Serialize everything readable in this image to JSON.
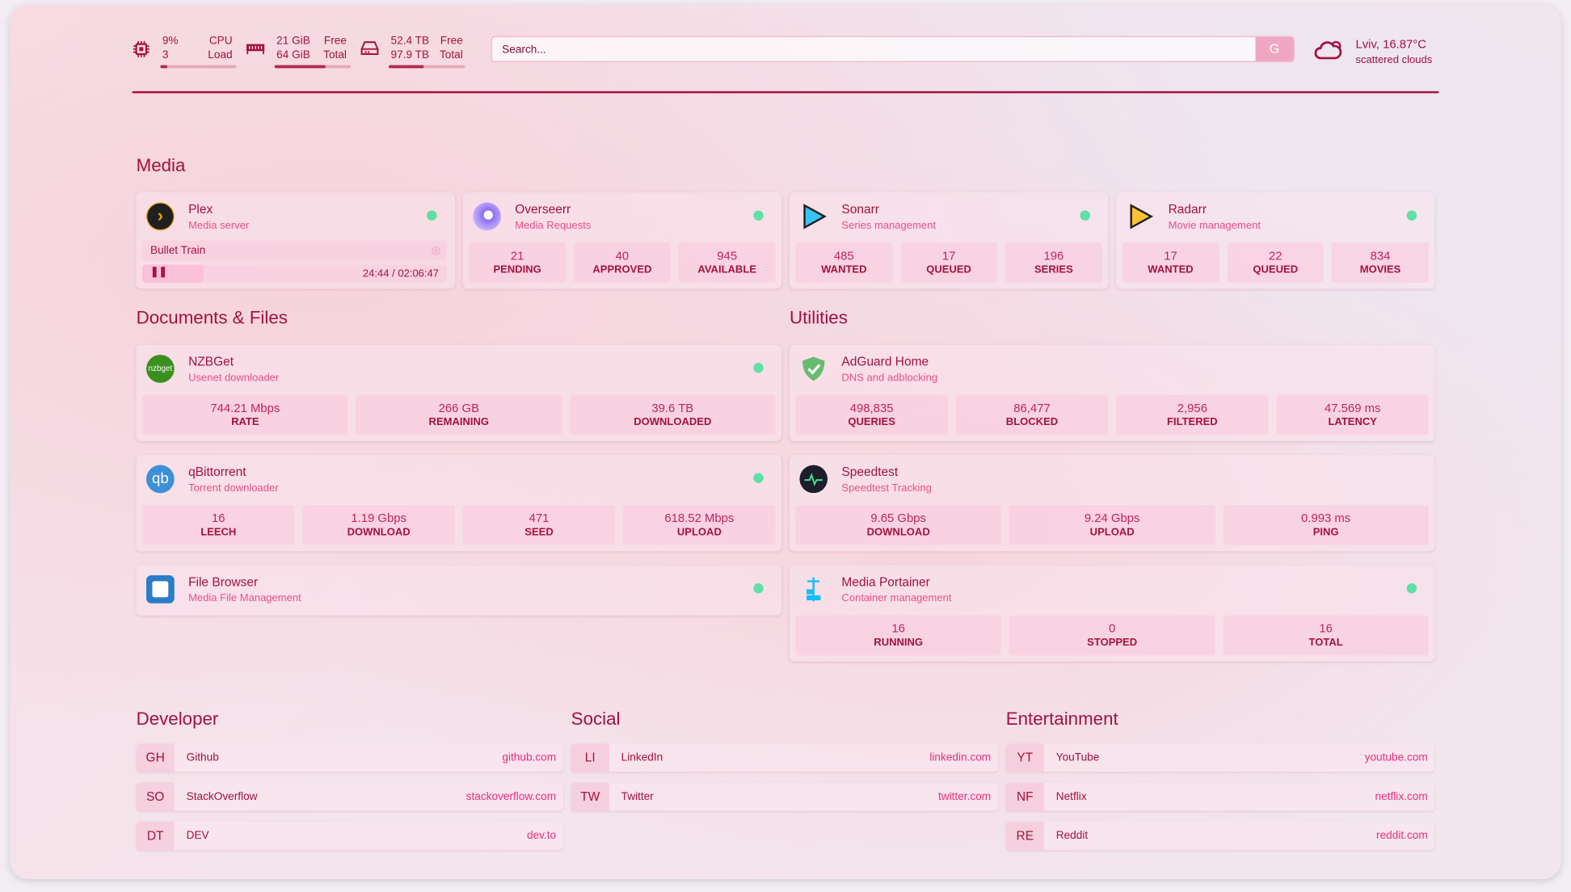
{
  "header": {
    "cpu": {
      "value": "9%",
      "value2": "3",
      "label": "CPU",
      "label2": "Load",
      "percent": 9
    },
    "memory": {
      "value": "21 GiB",
      "value2": "64 GiB",
      "label": "Free",
      "label2": "Total",
      "percent": 67
    },
    "disk": {
      "value": "52.4 TB",
      "value2": "97.9 TB",
      "label": "Free",
      "label2": "Total",
      "percent": 46
    },
    "search": {
      "placeholder": "Search...",
      "provider_button": "G"
    },
    "weather": {
      "location_temp": "Lviv, 16.87°C",
      "condition": "scattered clouds",
      "icon": "cloud-sun-icon"
    }
  },
  "colors": {
    "accent": "#a3123f",
    "link": "#ea2f82",
    "status_ok": "#5ee0a6"
  },
  "sections": {
    "media": "Media",
    "documents": "Documents & Files",
    "utilities": "Utilities",
    "developer": "Developer",
    "social": "Social",
    "entertainment": "Entertainment"
  },
  "media": [
    {
      "name": "Plex",
      "desc": "Media server",
      "now_playing": "Bullet Train",
      "progress": "24:44 / 02:06:47"
    },
    {
      "name": "Overseerr",
      "desc": "Media Requests",
      "stats": [
        {
          "v": "21",
          "l": "PENDING"
        },
        {
          "v": "40",
          "l": "APPROVED"
        },
        {
          "v": "945",
          "l": "AVAILABLE"
        }
      ]
    },
    {
      "name": "Sonarr",
      "desc": "Series management",
      "stats": [
        {
          "v": "485",
          "l": "WANTED"
        },
        {
          "v": "17",
          "l": "QUEUED"
        },
        {
          "v": "196",
          "l": "SERIES"
        }
      ]
    },
    {
      "name": "Radarr",
      "desc": "Movie management",
      "stats": [
        {
          "v": "17",
          "l": "WANTED"
        },
        {
          "v": "22",
          "l": "QUEUED"
        },
        {
          "v": "834",
          "l": "MOVIES"
        }
      ]
    }
  ],
  "documents": [
    {
      "name": "NZBGet",
      "desc": "Usenet downloader",
      "icon_text": "nzbget",
      "stats": [
        {
          "v": "744.21 Mbps",
          "l": "RATE"
        },
        {
          "v": "266 GB",
          "l": "REMAINING"
        },
        {
          "v": "39.6 TB",
          "l": "DOWNLOADED"
        }
      ]
    },
    {
      "name": "qBittorrent",
      "desc": "Torrent downloader",
      "icon_text": "qb",
      "stats": [
        {
          "v": "16",
          "l": "LEECH"
        },
        {
          "v": "1.19 Gbps",
          "l": "DOWNLOAD"
        },
        {
          "v": "471",
          "l": "SEED"
        },
        {
          "v": "618.52 Mbps",
          "l": "UPLOAD"
        }
      ]
    },
    {
      "name": "File Browser",
      "desc": "Media File Management"
    }
  ],
  "utilities": [
    {
      "name": "AdGuard Home",
      "desc": "DNS and adblocking",
      "stats": [
        {
          "v": "498,835",
          "l": "QUERIES"
        },
        {
          "v": "86,477",
          "l": "BLOCKED"
        },
        {
          "v": "2,956",
          "l": "FILTERED"
        },
        {
          "v": "47.569 ms",
          "l": "LATENCY"
        }
      ]
    },
    {
      "name": "Speedtest",
      "desc": "Speedtest Tracking",
      "stats": [
        {
          "v": "9.65 Gbps",
          "l": "DOWNLOAD"
        },
        {
          "v": "9.24 Gbps",
          "l": "UPLOAD"
        },
        {
          "v": "0.993 ms",
          "l": "PING"
        }
      ]
    },
    {
      "name": "Media Portainer",
      "desc": "Container management",
      "stats": [
        {
          "v": "16",
          "l": "RUNNING"
        },
        {
          "v": "0",
          "l": "STOPPED"
        },
        {
          "v": "16",
          "l": "TOTAL"
        }
      ]
    }
  ],
  "bookmarks": {
    "developer": [
      {
        "abbr": "GH",
        "name": "Github",
        "url": "github.com"
      },
      {
        "abbr": "SO",
        "name": "StackOverflow",
        "url": "stackoverflow.com"
      },
      {
        "abbr": "DT",
        "name": "DEV",
        "url": "dev.to"
      }
    ],
    "social": [
      {
        "abbr": "LI",
        "name": "LinkedIn",
        "url": "linkedin.com"
      },
      {
        "abbr": "TW",
        "name": "Twitter",
        "url": "twitter.com"
      }
    ],
    "entertainment": [
      {
        "abbr": "YT",
        "name": "YouTube",
        "url": "youtube.com"
      },
      {
        "abbr": "NF",
        "name": "Netflix",
        "url": "netflix.com"
      },
      {
        "abbr": "RE",
        "name": "Reddit",
        "url": "reddit.com"
      }
    ]
  }
}
